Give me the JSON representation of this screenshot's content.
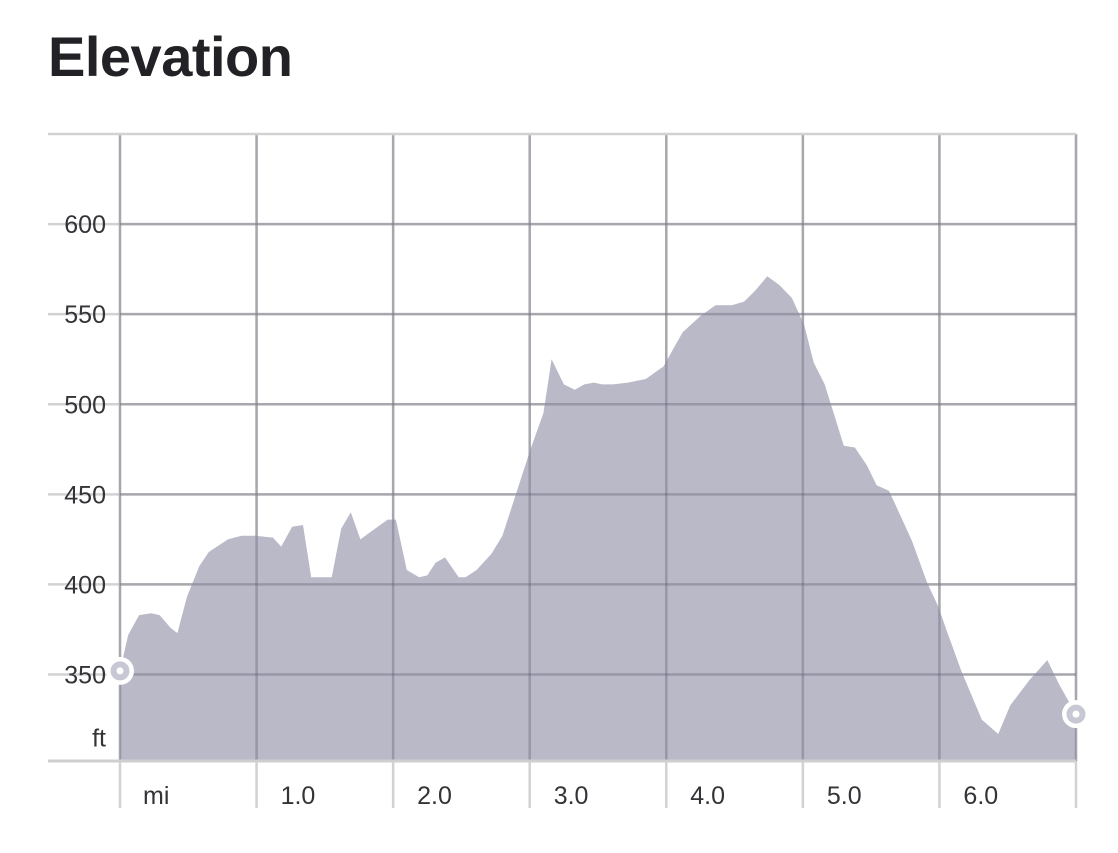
{
  "title": "Elevation",
  "chart_data": {
    "type": "area",
    "title": "Elevation",
    "xlabel": "mi",
    "ylabel": "ft",
    "xlim": [
      0,
      7.0
    ],
    "ylim": [
      302,
      650
    ],
    "x_ticks": [
      {
        "value": 0,
        "label": "mi"
      },
      {
        "value": 1,
        "label": "1.0"
      },
      {
        "value": 2,
        "label": "2.0"
      },
      {
        "value": 3,
        "label": "3.0"
      },
      {
        "value": 4,
        "label": "4.0"
      },
      {
        "value": 5,
        "label": "5.0"
      },
      {
        "value": 6,
        "label": "6.0"
      }
    ],
    "y_ticks": [
      {
        "value": 600,
        "label": "600"
      },
      {
        "value": 550,
        "label": "550"
      },
      {
        "value": 500,
        "label": "500"
      },
      {
        "value": 450,
        "label": "450"
      },
      {
        "value": 400,
        "label": "400"
      },
      {
        "value": 350,
        "label": "350"
      },
      {
        "value": 315,
        "label": "ft"
      }
    ],
    "grid": true,
    "fill_color": "#b9b9c8",
    "marker_color": "#c8c8d4",
    "series": [
      {
        "x": [
          0.0,
          0.06,
          0.14,
          0.23,
          0.29,
          0.37,
          0.42,
          0.49,
          0.58,
          0.65,
          0.79,
          0.89,
          0.99,
          1.12,
          1.18,
          1.26,
          1.34,
          1.4,
          1.55,
          1.62,
          1.69,
          1.76,
          1.85,
          1.96,
          2.02,
          2.1,
          2.19,
          2.25,
          2.31,
          2.38,
          2.48,
          2.53,
          2.61,
          2.72,
          2.8,
          2.92,
          3.01,
          3.1,
          3.16,
          3.25,
          3.33,
          3.4,
          3.47,
          3.53,
          3.61,
          3.72,
          3.85,
          3.98,
          4.06,
          4.12,
          4.25,
          4.36,
          4.48,
          4.57,
          4.65,
          4.74,
          4.83,
          4.92,
          5.01,
          5.08,
          5.16,
          5.23,
          5.3,
          5.38,
          5.47,
          5.54,
          5.63,
          5.71,
          5.8,
          5.91,
          5.99,
          6.06,
          6.16,
          6.31,
          6.43,
          6.52,
          6.66,
          6.79,
          6.88,
          7.0
        ],
        "y": [
          352,
          372,
          383,
          384,
          383,
          376,
          373,
          393,
          410,
          418,
          425,
          427,
          427,
          426,
          421,
          432,
          433,
          404,
          404,
          431,
          440,
          425,
          430,
          436,
          436,
          408,
          404,
          405,
          412,
          415,
          404,
          404,
          408,
          417,
          427,
          455,
          476,
          495,
          525,
          511,
          508,
          511,
          512,
          511,
          511,
          512,
          514,
          521,
          532,
          540,
          549,
          555,
          555,
          557,
          563,
          571,
          566,
          559,
          544,
          523,
          511,
          494,
          477,
          476,
          466,
          455,
          452,
          439,
          424,
          401,
          388,
          373,
          352,
          325,
          317,
          333,
          347,
          358,
          344,
          328
        ]
      }
    ]
  }
}
